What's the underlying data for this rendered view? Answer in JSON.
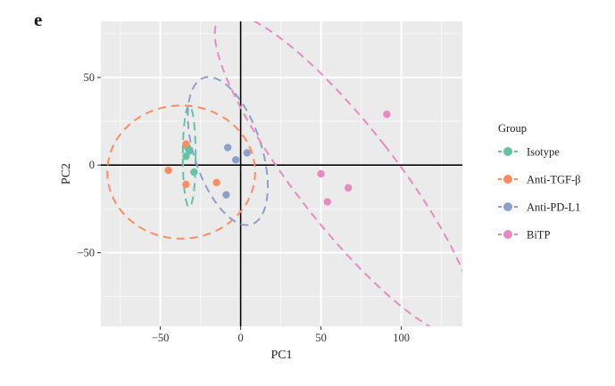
{
  "panel_label": "e",
  "chart_data": {
    "type": "scatter",
    "title": "",
    "xlabel": "PC1",
    "ylabel": "PC2",
    "xlim": [
      -87,
      138
    ],
    "ylim": [
      -92,
      82
    ],
    "xticks": [
      -50,
      0,
      50,
      100
    ],
    "yticks": [
      -50,
      0,
      50
    ],
    "xtick_labels": [
      "−50",
      "0",
      "50",
      "100"
    ],
    "ytick_labels": [
      "−50",
      "0",
      "50"
    ],
    "grid": true,
    "reference_lines": {
      "x": 0,
      "y": 0
    },
    "legend": {
      "title": "Group",
      "position": "right"
    },
    "series": [
      {
        "name": "Isotype",
        "color": "#66c2a5",
        "points": [
          [
            -33,
            10
          ],
          [
            -34,
            5
          ],
          [
            -29,
            -4
          ],
          [
            -32,
            8
          ]
        ],
        "ellipse": {
          "cx": -32,
          "cy": 5,
          "rx": 4,
          "ry": 29,
          "angle": 0
        }
      },
      {
        "name": "Anti-TGF-β",
        "color": "#fc8d62",
        "points": [
          [
            -34,
            12
          ],
          [
            -45,
            -3
          ],
          [
            -34,
            -11
          ],
          [
            -15,
            -10
          ]
        ],
        "ellipse": {
          "cx": -37,
          "cy": -4,
          "rx": 46,
          "ry": 38,
          "angle": 0
        }
      },
      {
        "name": "Anti-PD-L1",
        "color": "#8da0cb",
        "points": [
          [
            -8,
            10
          ],
          [
            -3,
            3
          ],
          [
            4,
            7
          ],
          [
            -9,
            -17
          ]
        ],
        "ellipse": {
          "cx": -8,
          "cy": 8,
          "rx": 21,
          "ry": 44,
          "angle": 18
        }
      },
      {
        "name": "BiTP",
        "color": "#e78ac3",
        "points": [
          [
            50,
            -5
          ],
          [
            54,
            -21
          ],
          [
            67,
            -13
          ],
          [
            91,
            29
          ]
        ],
        "ellipse": {
          "cx": 65,
          "cy": -6,
          "rx": 31,
          "ry": 115,
          "angle": 38
        }
      }
    ]
  }
}
